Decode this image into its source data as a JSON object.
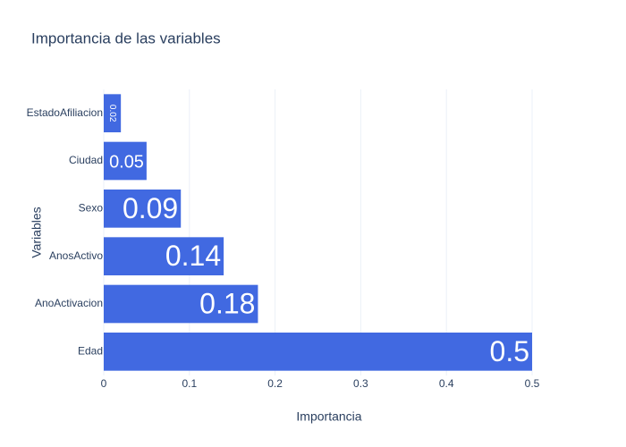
{
  "chart_data": {
    "type": "bar",
    "orientation": "horizontal",
    "title": "Importancia de las variables",
    "x_label": "Importancia",
    "y_label": "Variables",
    "categories": [
      "Edad",
      "AnoActivacion",
      "AnosActivo",
      "Sexo",
      "Ciudad",
      "EstadoAfiliacion"
    ],
    "values": [
      0.5,
      0.18,
      0.14,
      0.09,
      0.05,
      0.02
    ],
    "color": "#4169e1",
    "xlim": [
      0,
      0.5
    ],
    "xticks": [
      0,
      0.1,
      0.2,
      0.3,
      0.4,
      0.5
    ],
    "grid": true
  }
}
